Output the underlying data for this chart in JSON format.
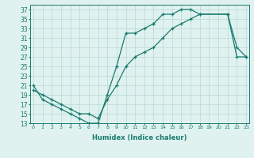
{
  "xlabel": "Humidex (Indice chaleur)",
  "bg_color": "#dff2f0",
  "line_color": "#1a7a6e",
  "grid_color": "#b8d8d4",
  "series": [
    {
      "x": [
        0,
        1,
        2,
        3,
        4,
        5,
        6,
        7,
        8,
        9,
        10,
        11,
        12,
        13
      ],
      "y": [
        21,
        18,
        17,
        16,
        15,
        14,
        13,
        13,
        19,
        25,
        32,
        32,
        33,
        34
      ]
    },
    {
      "x": [
        13,
        14,
        15,
        16,
        17,
        18,
        21,
        22,
        23
      ],
      "y": [
        34,
        36,
        36,
        37,
        37,
        36,
        36,
        29,
        27
      ]
    },
    {
      "x": [
        0,
        1,
        2,
        3,
        4,
        5,
        6,
        7,
        8,
        9,
        10,
        11,
        12,
        13,
        14,
        15,
        16,
        17,
        18,
        21,
        22,
        23
      ],
      "y": [
        20,
        19,
        18,
        17,
        16,
        15,
        15,
        14,
        18,
        21,
        25,
        27,
        28,
        29,
        31,
        33,
        34,
        35,
        36,
        36,
        27,
        27
      ]
    }
  ],
  "xticks": [
    0,
    1,
    2,
    3,
    4,
    5,
    6,
    7,
    8,
    9,
    10,
    11,
    12,
    13,
    14,
    15,
    16,
    17,
    18,
    19,
    20,
    21,
    22,
    23
  ],
  "yticks": [
    13,
    15,
    17,
    19,
    21,
    23,
    25,
    27,
    29,
    31,
    33,
    35,
    37
  ],
  "xlim": [
    -0.3,
    23.3
  ],
  "ylim": [
    13,
    38
  ]
}
